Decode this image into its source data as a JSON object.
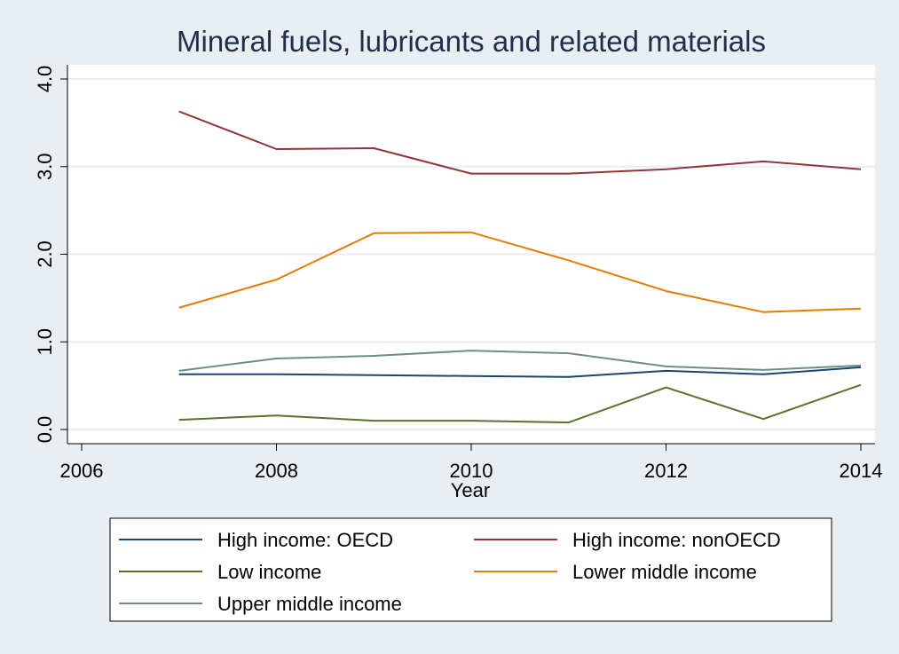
{
  "chart_data": {
    "type": "line",
    "title": "Mineral fuels, lubricants and related materials",
    "xlabel": "Year",
    "ylabel": "",
    "x": [
      2007,
      2008,
      2009,
      2010,
      2011,
      2012,
      2013,
      2014
    ],
    "xlim": [
      2006,
      2014
    ],
    "ylim": [
      0,
      4
    ],
    "xticks": [
      2006,
      2008,
      2010,
      2012,
      2014
    ],
    "xtick_labels": [
      "2006",
      "2008",
      "2010",
      "2012",
      "2014"
    ],
    "yticks": [
      0,
      1,
      2,
      3,
      4
    ],
    "ytick_labels": [
      "0.0",
      "1.0",
      "2.0",
      "3.0",
      "4.0"
    ],
    "grid": true,
    "legend_position": "bottom",
    "series": [
      {
        "name": "High income: OECD",
        "color": "#1a476f",
        "values": [
          0.63,
          0.63,
          0.62,
          0.61,
          0.6,
          0.67,
          0.63,
          0.71
        ]
      },
      {
        "name": "High income: nonOECD",
        "color": "#90353b",
        "values": [
          3.63,
          3.2,
          3.21,
          2.92,
          2.92,
          2.97,
          3.06,
          2.97
        ]
      },
      {
        "name": "Low income",
        "color": "#55752f",
        "values": [
          0.11,
          0.16,
          0.1,
          0.1,
          0.08,
          0.48,
          0.12,
          0.51
        ]
      },
      {
        "name": "Lower middle income",
        "color": "#e37e00",
        "values": [
          1.39,
          1.71,
          2.24,
          2.25,
          1.93,
          1.58,
          1.34,
          1.38
        ]
      },
      {
        "name": "Upper middle income",
        "color": "#6e8e84",
        "values": [
          0.67,
          0.81,
          0.84,
          0.9,
          0.87,
          0.72,
          0.68,
          0.73
        ]
      }
    ]
  }
}
